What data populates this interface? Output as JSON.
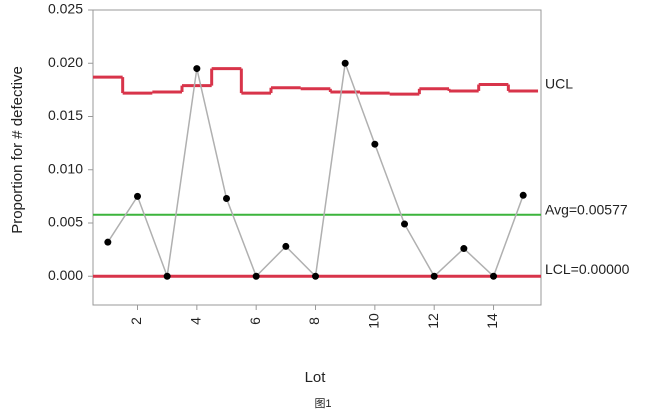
{
  "chart_data": {
    "type": "control",
    "y_label": "Proportion for # defective",
    "x_label": "Lot",
    "caption": "图1",
    "x": [
      1,
      2,
      3,
      4,
      5,
      6,
      7,
      8,
      9,
      10,
      11,
      12,
      13,
      14,
      15
    ],
    "values": [
      0.0032,
      0.0075,
      0,
      0.0195,
      0.0073,
      0,
      0.0028,
      0,
      0.02,
      0.0124,
      0.0049,
      0,
      0.0026,
      0,
      0.0076
    ],
    "color": "#b0b0b0",
    "point_color": "#000000",
    "ucl": {
      "name": "UCL",
      "color": "#d8344a",
      "values": [
        0.0187,
        0.0172,
        0.0173,
        0.0179,
        0.0195,
        0.0172,
        0.0177,
        0.0176,
        0.0173,
        0.0172,
        0.0171,
        0.0176,
        0.0174,
        0.018,
        0.0174
      ]
    },
    "avg": {
      "value": 0.00577,
      "label": "Avg=0.00577",
      "color": "#3cb43c"
    },
    "lcl": {
      "value": 0,
      "label": "LCL=0.00000",
      "color": "#d8344a"
    },
    "xlim": [
      0.5,
      15.6
    ],
    "xticks": [
      2,
      4,
      6,
      8,
      10,
      12,
      14
    ],
    "ylim": [
      -0.0027,
      0.025
    ],
    "yticks": [
      {
        "value": 0,
        "label": "0.000"
      },
      {
        "value": 0.005,
        "label": "0.005"
      },
      {
        "value": 0.01,
        "label": "0.010"
      },
      0.015,
      {
        "value": 0.02,
        "label": "0.020"
      },
      0.025
    ]
  }
}
